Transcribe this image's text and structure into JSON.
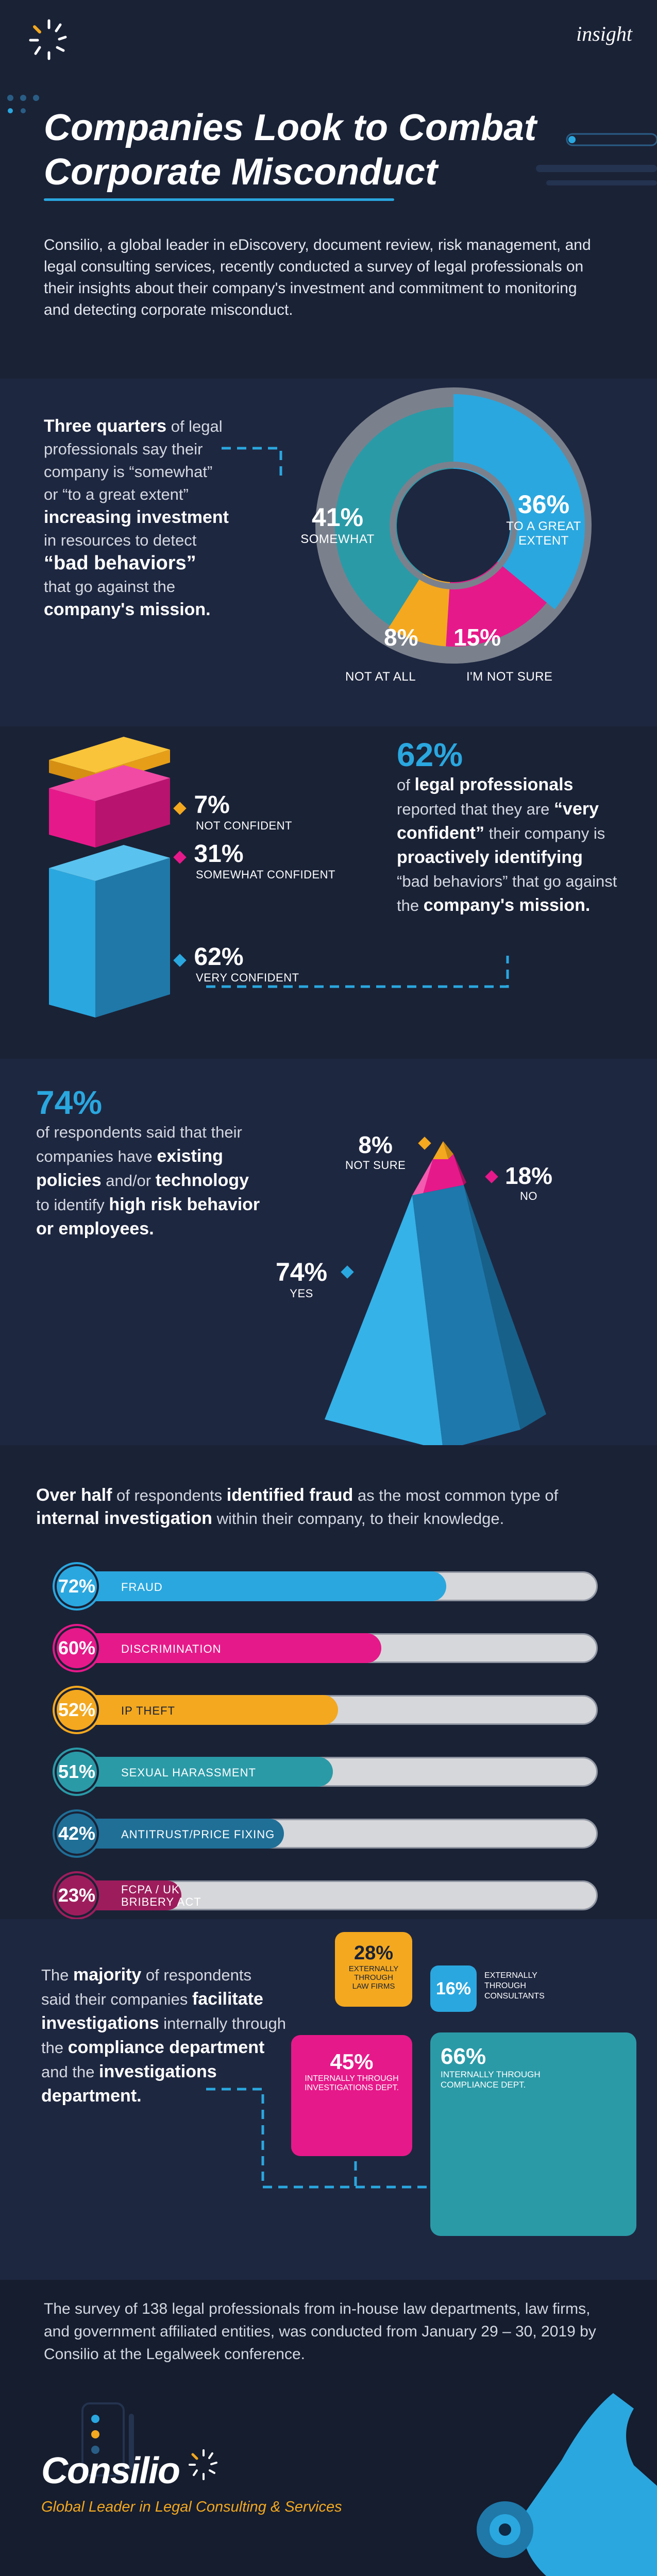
{
  "header": {
    "brand_label": "insight",
    "title_line1": "Companies Look to Combat",
    "title_line2": "Corporate Misconduct",
    "intro": "Consilio, a global leader in eDiscovery, document review, risk management, and legal consulting services, recently conducted a survey of legal professionals on their insights about their company's investment and commitment to monitoring and detecting corporate misconduct."
  },
  "stat1": {
    "l1a": "Three quarters",
    "l1b": " of legal",
    "l2": "professionals say their",
    "l3": "company is “somewhat”",
    "l4": "or “to a great extent”",
    "l5": "increasing investment",
    "l6": "in resources to detect",
    "l7": "“bad behaviors”",
    "l8a": "that go against the",
    "l9": "company's mission.",
    "donut": [
      {
        "label": "TO A GREAT EXTENT",
        "label1": "TO A GREAT",
        "label2": "EXTENT",
        "value": 36,
        "pct": "36%",
        "color": "#2aa7df"
      },
      {
        "label": "I'M NOT SURE",
        "value": 15,
        "pct": "15%",
        "color": "#e6198a"
      },
      {
        "label": "NOT AT ALL",
        "value": 8,
        "pct": "8%",
        "color": "#f3a81f"
      },
      {
        "label": "SOMEWHAT",
        "value": 41,
        "pct": "41%",
        "color": "#2a9aa7"
      }
    ]
  },
  "stat2": {
    "big": "62%",
    "t1a": "of ",
    "t1b": "legal professionals",
    "t2a": "reported that they are ",
    "t2b": "“very",
    "t3a": "confident”",
    "t3b": " their company is",
    "t4": "proactively identifying",
    "t5": "“bad behaviors” that go against",
    "t6a": "the ",
    "t6b": "company's mission.",
    "items": [
      {
        "pct": "7%",
        "label": "NOT CONFIDENT",
        "color": "#f3a81f"
      },
      {
        "pct": "31%",
        "label": "SOMEWHAT CONFIDENT",
        "color": "#e6198a"
      },
      {
        "pct": "62%",
        "label": "VERY CONFIDENT",
        "color": "#2aa7df"
      }
    ]
  },
  "stat3": {
    "big": "74%",
    "t1": "of respondents said that their",
    "t2a": "companies have ",
    "t2b": "existing",
    "t3a": "policies",
    "t3b": " and/or ",
    "t3c": "technology",
    "t4a": "to identify ",
    "t4b": "high risk behavior",
    "t5": "or employees.",
    "items": [
      {
        "pct": "8%",
        "label": "NOT SURE"
      },
      {
        "pct": "18%",
        "label": "NO"
      },
      {
        "pct": "74%",
        "label": "YES"
      }
    ]
  },
  "stat4": {
    "h1a": "Over half",
    "h1b": " of respondents ",
    "h1c": "identified fraud",
    "h1d": " as the most common type of",
    "h2a": "internal investigation",
    "h2b": " within their company, to their knowledge.",
    "bars": [
      {
        "pct": "72%",
        "value": 72,
        "label": "FRAUD",
        "color": "#2aa7df"
      },
      {
        "pct": "60%",
        "value": 60,
        "label": "DISCRIMINATION",
        "color": "#e6198a"
      },
      {
        "pct": "52%",
        "value": 52,
        "label": "IP THEFT",
        "color": "#f3a81f"
      },
      {
        "pct": "51%",
        "value": 51,
        "label": "SEXUAL HARASSMENT",
        "color": "#2a9aa7"
      },
      {
        "pct": "42%",
        "value": 42,
        "label": "ANTITRUST/PRICE FIXING",
        "color": "#1f6f97"
      },
      {
        "pct": "23%",
        "value": 23,
        "label1": "FCPA / UK",
        "label2": "BRIBERY ACT",
        "color": "#9d1d5c"
      }
    ]
  },
  "stat5": {
    "t1a": "The ",
    "t1b": "majority",
    "t1c": " of respondents",
    "t2a": "said their companies ",
    "t2b": "facilitate",
    "t3a": "investigations",
    "t3b": " internally through",
    "t4a": "the ",
    "t4b": "compliance department",
    "t5a": "and the ",
    "t5b": "investigations",
    "t6": "department.",
    "boxes": [
      {
        "pct": "28%",
        "label1": "EXTERNALLY",
        "label2": "THROUGH",
        "label3": "LAW FIRMS"
      },
      {
        "pct": "16%",
        "label1": "EXTERNALLY",
        "label2": "THROUGH",
        "label3": "CONSULTANTS"
      },
      {
        "pct": "45%",
        "label1": "INTERNALLY THROUGH",
        "label2": "INVESTIGATIONS DEPT."
      },
      {
        "pct": "66%",
        "label1": "INTERNALLY THROUGH",
        "label2": "COMPLIANCE DEPT."
      }
    ]
  },
  "footer": {
    "note": "The survey of 138 legal professionals from in-house law departments, law firms, and government affiliated entities, was conducted from January 29 – 30, 2019 by Consilio at the Legalweek conference.",
    "brand": "Consilio",
    "tagline": "Global Leader in Legal Consulting & Services"
  }
}
